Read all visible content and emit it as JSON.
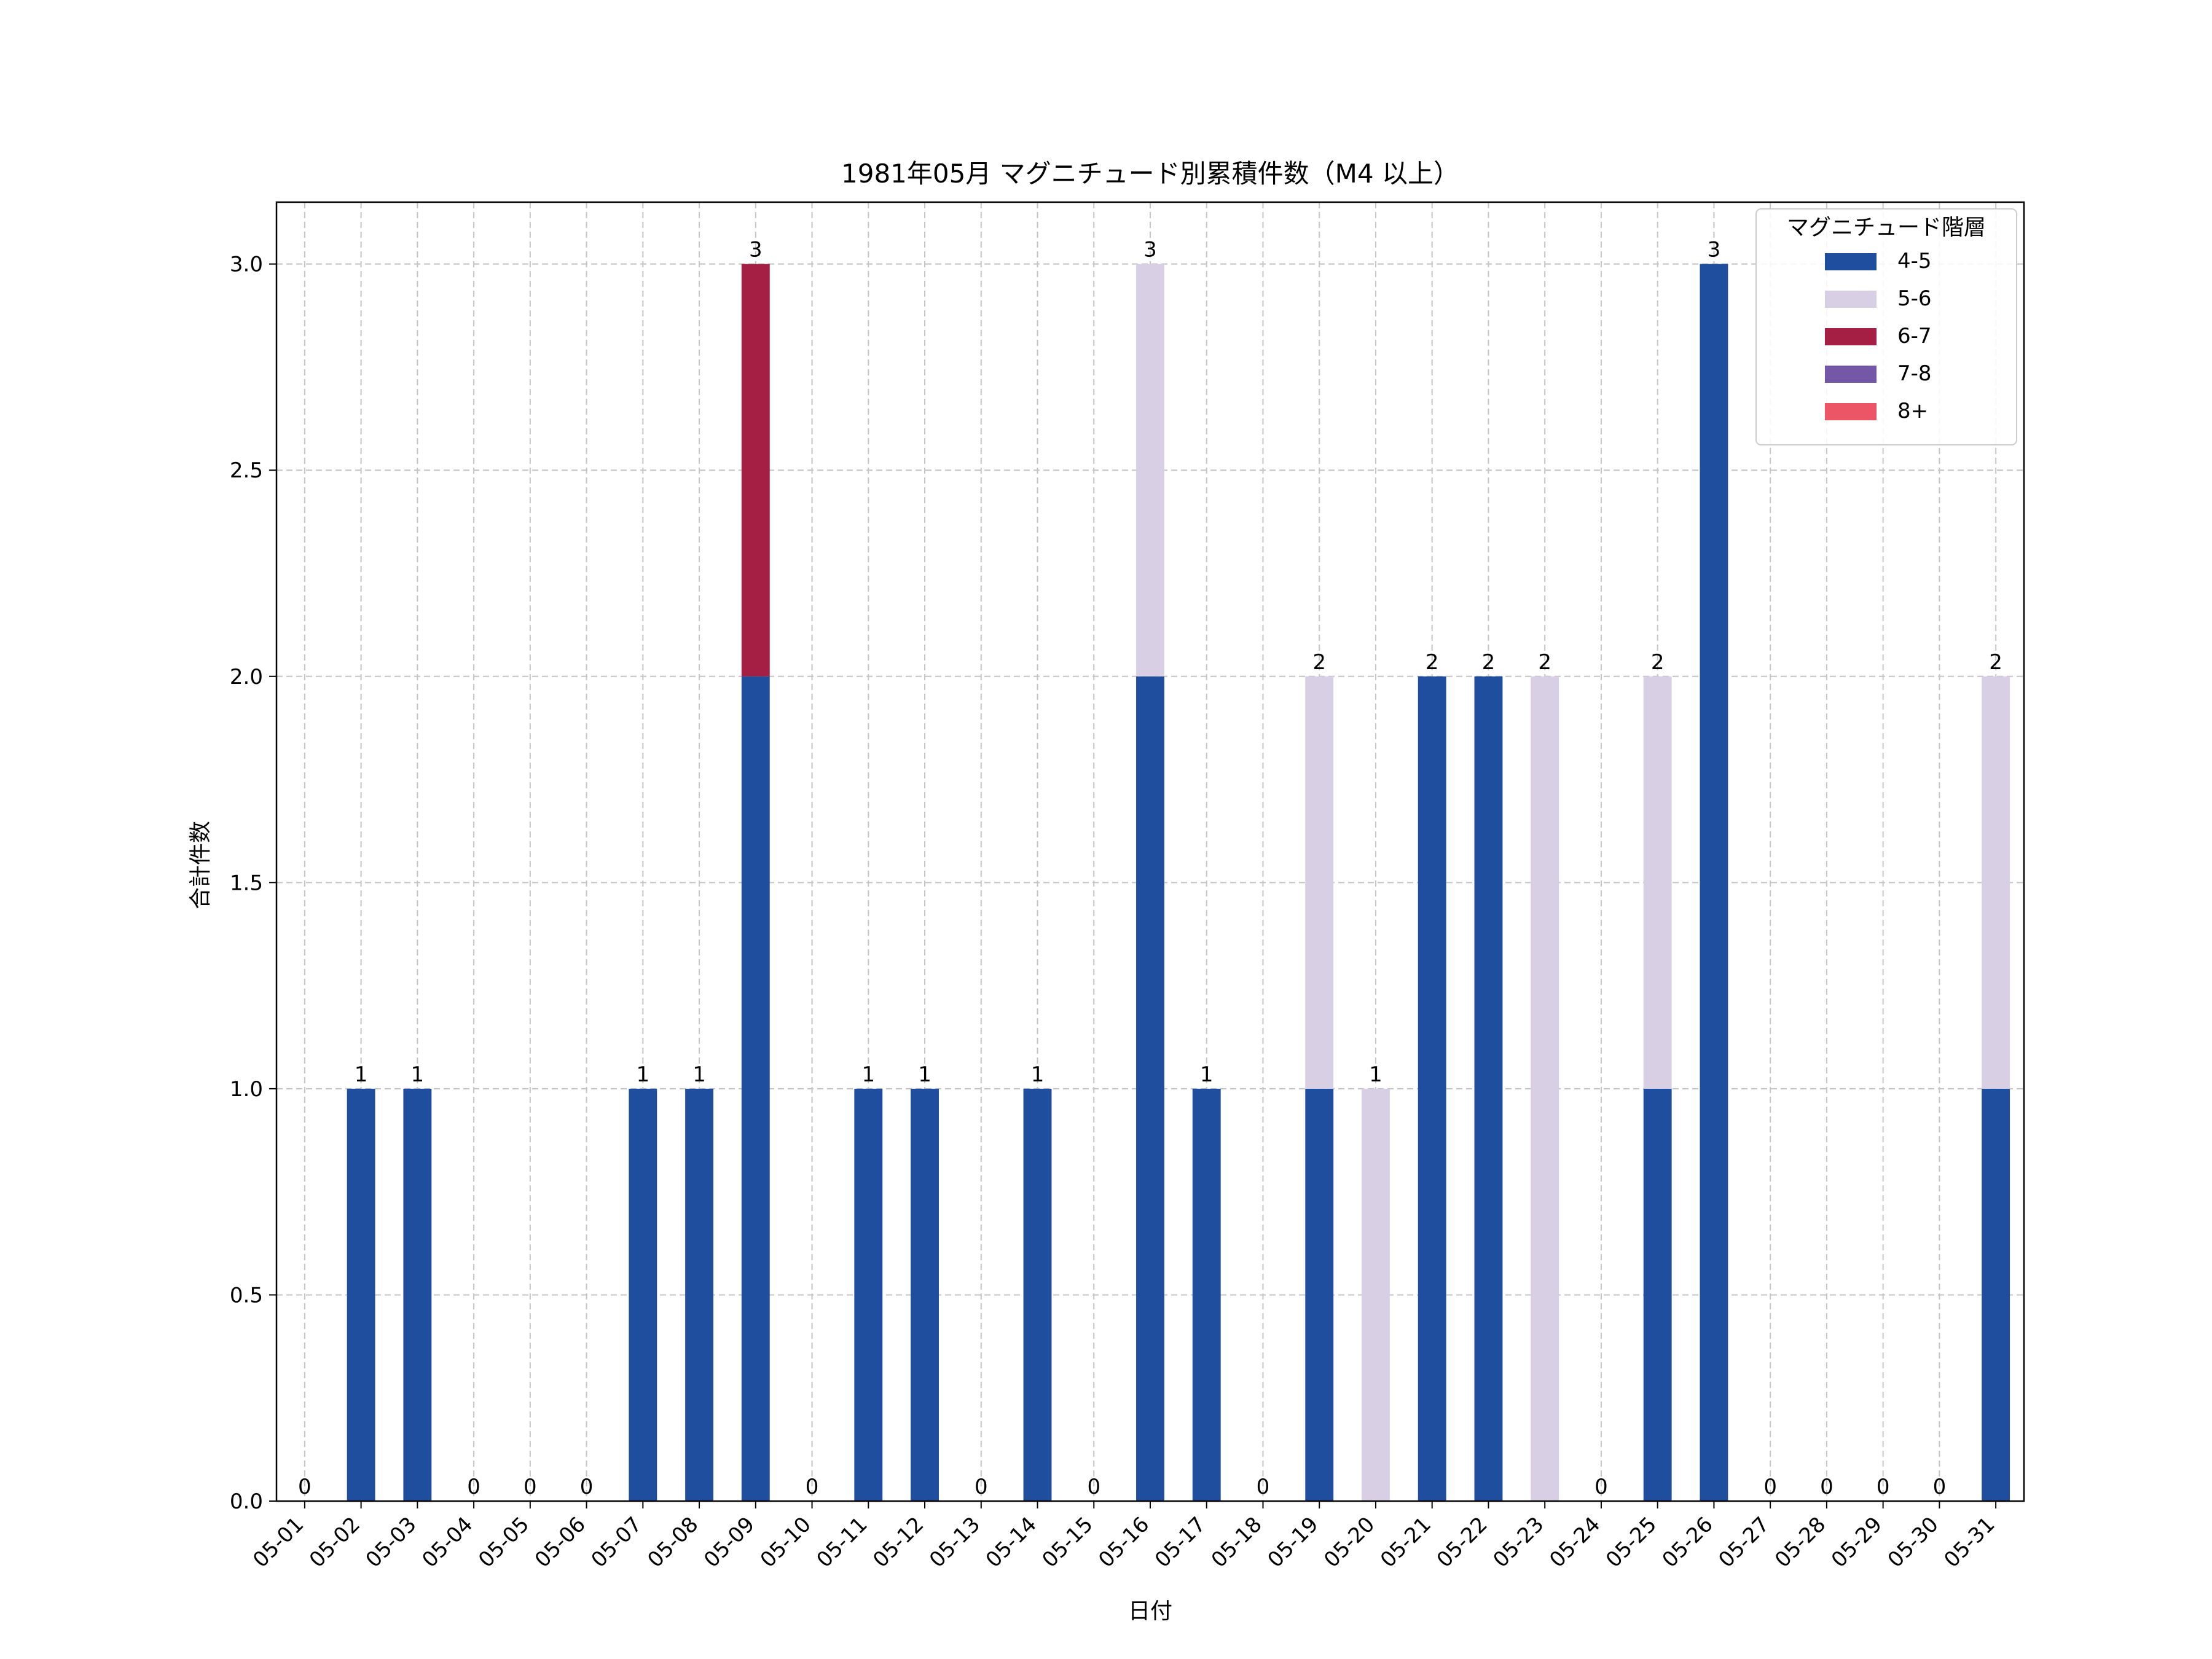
{
  "chart_data": {
    "type": "bar",
    "stacked": true,
    "title": "1981年05月 マグニチュード別累積件数（M4 以上）",
    "xlabel": "日付",
    "ylabel": "合計件数",
    "ylim": [
      0,
      3.15
    ],
    "yticks": [
      "0.0",
      "0.5",
      "1.0",
      "1.5",
      "2.0",
      "2.5",
      "3.0"
    ],
    "grid": true,
    "legend": {
      "title": "マグニチュード階層",
      "placement": "top-right"
    },
    "categories": [
      "05-01",
      "05-02",
      "05-03",
      "05-04",
      "05-05",
      "05-06",
      "05-07",
      "05-08",
      "05-09",
      "05-10",
      "05-11",
      "05-12",
      "05-13",
      "05-14",
      "05-15",
      "05-16",
      "05-17",
      "05-18",
      "05-19",
      "05-20",
      "05-21",
      "05-22",
      "05-23",
      "05-24",
      "05-25",
      "05-26",
      "05-27",
      "05-28",
      "05-29",
      "05-30",
      "05-31"
    ],
    "series": [
      {
        "name": "4-5",
        "color": "#1f4e9e",
        "values": [
          0,
          1,
          1,
          0,
          0,
          0,
          1,
          1,
          2,
          0,
          1,
          1,
          0,
          1,
          0,
          2,
          1,
          0,
          1,
          0,
          2,
          2,
          0,
          0,
          1,
          3,
          0,
          0,
          0,
          0,
          1
        ]
      },
      {
        "name": "5-6",
        "color": "#d9cfe5",
        "values": [
          0,
          0,
          0,
          0,
          0,
          0,
          0,
          0,
          0,
          0,
          0,
          0,
          0,
          0,
          0,
          1,
          0,
          0,
          1,
          1,
          0,
          0,
          2,
          0,
          1,
          0,
          0,
          0,
          0,
          0,
          1
        ]
      },
      {
        "name": "6-7",
        "color": "#a51f45",
        "values": [
          0,
          0,
          0,
          0,
          0,
          0,
          0,
          0,
          1,
          0,
          0,
          0,
          0,
          0,
          0,
          0,
          0,
          0,
          0,
          0,
          0,
          0,
          0,
          0,
          0,
          0,
          0,
          0,
          0,
          0,
          0
        ]
      },
      {
        "name": "7-8",
        "color": "#7557a8",
        "values": [
          0,
          0,
          0,
          0,
          0,
          0,
          0,
          0,
          0,
          0,
          0,
          0,
          0,
          0,
          0,
          0,
          0,
          0,
          0,
          0,
          0,
          0,
          0,
          0,
          0,
          0,
          0,
          0,
          0,
          0,
          0
        ]
      },
      {
        "name": "8+",
        "color": "#ec5565",
        "values": [
          0,
          0,
          0,
          0,
          0,
          0,
          0,
          0,
          0,
          0,
          0,
          0,
          0,
          0,
          0,
          0,
          0,
          0,
          0,
          0,
          0,
          0,
          0,
          0,
          0,
          0,
          0,
          0,
          0,
          0,
          0
        ]
      }
    ],
    "totals": [
      "0",
      "1",
      "1",
      "0",
      "0",
      "0",
      "1",
      "1",
      "3",
      "0",
      "1",
      "1",
      "0",
      "1",
      "0",
      "3",
      "1",
      "0",
      "2",
      "1",
      "2",
      "2",
      "2",
      "0",
      "2",
      "3",
      "0",
      "0",
      "0",
      "0",
      "2"
    ]
  }
}
